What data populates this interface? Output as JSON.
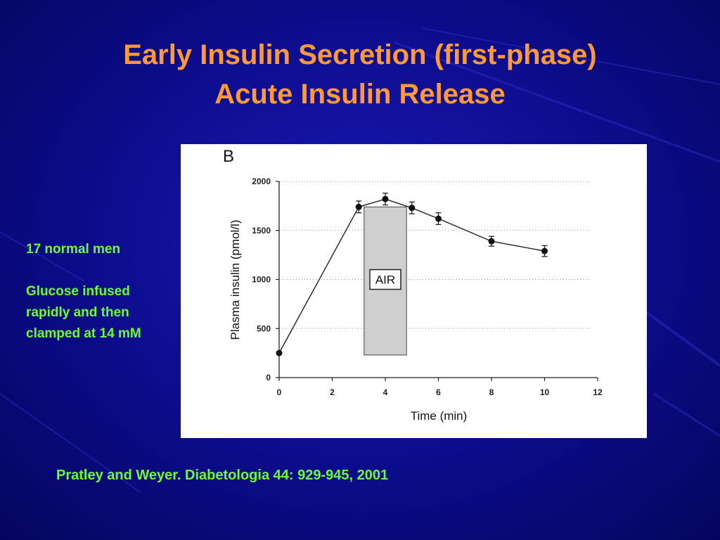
{
  "slide": {
    "title_line1": "Early Insulin Secretion (first-phase)",
    "title_line2": "Acute Insulin Release",
    "notes": [
      "17 normal men",
      "Glucose infused rapidly and then clamped at 14 mM"
    ],
    "citation": "Pratley and Weyer.  Diabetologia 44: 929-945, 2001",
    "colors": {
      "title": "#ff9933",
      "notes": "#66ff33",
      "background": "#0c0c8a"
    }
  },
  "chart_data": {
    "type": "line",
    "panel_label": "B",
    "xlabel": "Time (min)",
    "ylabel": "Plasma insulin (pmol/l)",
    "xlim": [
      0,
      12
    ],
    "ylim": [
      0,
      2000
    ],
    "xticks": [
      0,
      2,
      4,
      6,
      8,
      10,
      12
    ],
    "yticks": [
      0,
      500,
      1000,
      1500,
      2000
    ],
    "grid": "dotted horizontal",
    "series": [
      {
        "x": [
          0,
          3,
          4,
          5,
          6,
          8,
          10
        ],
        "y": [
          250,
          1740,
          1820,
          1730,
          1620,
          1390,
          1290
        ],
        "err": [
          0,
          60,
          60,
          60,
          60,
          50,
          55
        ]
      }
    ],
    "annotation": {
      "label": "AIR",
      "x_range": [
        3.2,
        4.8
      ],
      "y_range": [
        230,
        1740
      ]
    }
  }
}
